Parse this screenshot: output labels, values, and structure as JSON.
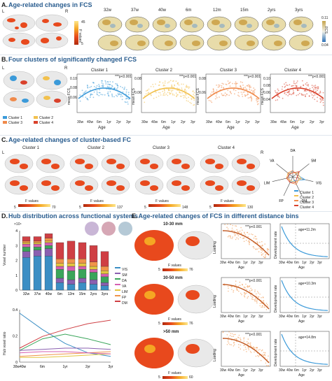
{
  "panels": {
    "A": {
      "letter": "A.",
      "title": "Age-related changes in FCS",
      "hemi_left": "L",
      "hemi_right": "R",
      "cbar_top": "45",
      "cbar_bottom": "5",
      "cbar_label": "F values",
      "ages": [
        "32w",
        "37w",
        "40w",
        "6m",
        "12m",
        "15m",
        "2yrs",
        "3yrs"
      ],
      "fcs_top": "0.11",
      "fcs_bottom": "0.04",
      "fcs_label": "FCS"
    },
    "B": {
      "letter": "B.",
      "title": "Four clusters of significantly changed FCS",
      "hemi_left": "L",
      "hemi_right": "R",
      "legend": [
        "Cluster 1",
        "Cluster 2",
        "Cluster 3",
        "Cluster 4"
      ],
      "ylabel": "mean FCS",
      "xlabel": "Age",
      "xticks": [
        "30w",
        "40w",
        "6m",
        "1yr",
        "2yr",
        "3yr"
      ],
      "clusters": [
        {
          "name": "Cluster 1",
          "p": "***p<0.001",
          "yticks": [
            "0.10",
            "0.08",
            "0.06"
          ]
        },
        {
          "name": "Cluster 2",
          "p": "***p<0.001",
          "yticks": [
            "0.08",
            "0.06"
          ]
        },
        {
          "name": "Cluster 3",
          "p": "***p<0.001",
          "yticks": [
            "0.08",
            "0.06"
          ]
        },
        {
          "name": "Cluster 4",
          "p": "***p<0.001",
          "yticks": [
            "0.10",
            "0.08",
            "0.06",
            "0.04"
          ]
        }
      ]
    },
    "C": {
      "letter": "C.",
      "title": "Age-related changes of cluster-based FC",
      "clusters": [
        {
          "name": "Cluster 1",
          "cb_min": "5",
          "cb_max": "70"
        },
        {
          "name": "Cluster 2",
          "cb_min": "5",
          "cb_max": "137"
        },
        {
          "name": "Cluster 3",
          "cb_min": "5",
          "cb_max": "148"
        },
        {
          "name": "Cluster 4",
          "cb_min": "5",
          "cb_max": "130"
        }
      ],
      "cb_label": "F values",
      "hemi_left": "L",
      "hemi_right": "R",
      "radar_axes": [
        "DA",
        "SM",
        "VIS",
        "DM",
        "FP",
        "LIM",
        "VA"
      ],
      "radar_legend": [
        "Cluster 1",
        "Cluster 2",
        "Cluster 3",
        "Cluster 4"
      ]
    },
    "D": {
      "letter": "D.",
      "title": "Hub distribution across functional systems",
      "exp": "×10⁴",
      "ylabel": "Voxel number",
      "ylabel2": "Hub voxel ratio",
      "yticks": [
        "4",
        "3",
        "2",
        "1",
        "0"
      ],
      "categories": [
        "32w",
        "37w",
        "40w",
        "6m",
        "12m",
        "15m",
        "2yrs",
        "3yrs"
      ],
      "systems": [
        "VIS",
        "SM",
        "DA",
        "VA",
        "LIM",
        "FP",
        "DM"
      ],
      "xticks2": [
        "30w40w",
        "6m",
        "1yr",
        "2yr",
        "3yr"
      ],
      "yticks2": [
        "0.4",
        "0.2",
        "0"
      ]
    },
    "E": {
      "letter": "E.",
      "title": "Age-related changes of FCS in different distance bins",
      "bins": [
        {
          "name": "10-30 mm",
          "cb_min": "5",
          "cb_max": "76",
          "p": "***p<0.001",
          "age_note": "age=11.2m"
        },
        {
          "name": "30-50 mm",
          "cb_min": "5",
          "cb_max": "76",
          "p": "***p<0.001",
          "age_note": "age=10.3m"
        },
        {
          "name": ">50 mm",
          "cb_min": "5",
          "cb_max": "60",
          "p": "***p<0.001",
          "age_note": "age=14.8m"
        }
      ],
      "cb_label": "F values",
      "ylabel": "Loading",
      "ylabel2": "Development rate",
      "xlabel": "Age",
      "xticks": [
        "30w",
        "40w",
        "6m",
        "1yr",
        "2yr",
        "3yr"
      ]
    }
  },
  "colors": {
    "title": "#2a5d8f",
    "brain": "#e9e9e9",
    "hot": "#e8491d",
    "cluster1": "#3b9ad9",
    "cluster2": "#f2c14e",
    "cluster3": "#f08a4b",
    "cluster4": "#d9412b",
    "VIS": "#3b8ec4",
    "SM": "#8a5fb0",
    "DA": "#3aa55a",
    "VA": "#d65fb1",
    "LIM": "#e3c63f",
    "FP": "#f0944a",
    "DM": "#cf3f44"
  },
  "chart_data": [
    {
      "type": "bar",
      "title": "Hub distribution across functional systems",
      "ylabel": "Voxel number",
      "categories": [
        "32w",
        "37w",
        "40w",
        "6m",
        "12m",
        "15m",
        "2yrs",
        "3yrs"
      ],
      "series": [
        {
          "name": "VIS",
          "values": [
            2.2,
            2.3,
            2.3,
            0.5,
            0.4,
            0.5,
            0.4,
            0.3
          ]
        },
        {
          "name": "SM",
          "values": [
            0.4,
            0.4,
            0.5,
            0.3,
            0.3,
            0.3,
            0.3,
            0.2
          ]
        },
        {
          "name": "DA",
          "values": [
            0.3,
            0.2,
            0.2,
            0.6,
            0.6,
            0.6,
            0.5,
            0.4
          ]
        },
        {
          "name": "VA",
          "values": [
            0.2,
            0.2,
            0.2,
            0.2,
            0.3,
            0.2,
            0.2,
            0.2
          ]
        },
        {
          "name": "LIM",
          "values": [
            0.1,
            0.1,
            0.1,
            0.2,
            0.2,
            0.2,
            0.2,
            0.2
          ]
        },
        {
          "name": "FP",
          "values": [
            0.1,
            0.1,
            0.2,
            0.3,
            0.3,
            0.3,
            0.3,
            0.3
          ]
        },
        {
          "name": "DM",
          "values": [
            0.3,
            0.3,
            0.3,
            1.1,
            1.2,
            1.1,
            1.1,
            1.0
          ]
        }
      ],
      "ylim": [
        0,
        4
      ]
    },
    {
      "type": "line",
      "ylabel": "Hub voxel ratio",
      "x": [
        0,
        0.25,
        0.5,
        0.75,
        1.0
      ],
      "series": [
        {
          "name": "VIS",
          "values": [
            0.42,
            0.28,
            0.16,
            0.08,
            0.05
          ]
        },
        {
          "name": "DA",
          "values": [
            0.1,
            0.2,
            0.24,
            0.2,
            0.15
          ]
        },
        {
          "name": "DM",
          "values": [
            0.12,
            0.22,
            0.28,
            0.33,
            0.36
          ]
        },
        {
          "name": "SM",
          "values": [
            0.1,
            0.11,
            0.12,
            0.12,
            0.11
          ]
        },
        {
          "name": "FP",
          "values": [
            0.05,
            0.06,
            0.07,
            0.08,
            0.09
          ]
        },
        {
          "name": "LIM",
          "values": [
            0.04,
            0.04,
            0.05,
            0.06,
            0.07
          ]
        },
        {
          "name": "VA",
          "values": [
            0.08,
            0.09,
            0.09,
            0.08,
            0.07
          ]
        }
      ],
      "ylim": [
        0,
        0.45
      ]
    }
  ]
}
